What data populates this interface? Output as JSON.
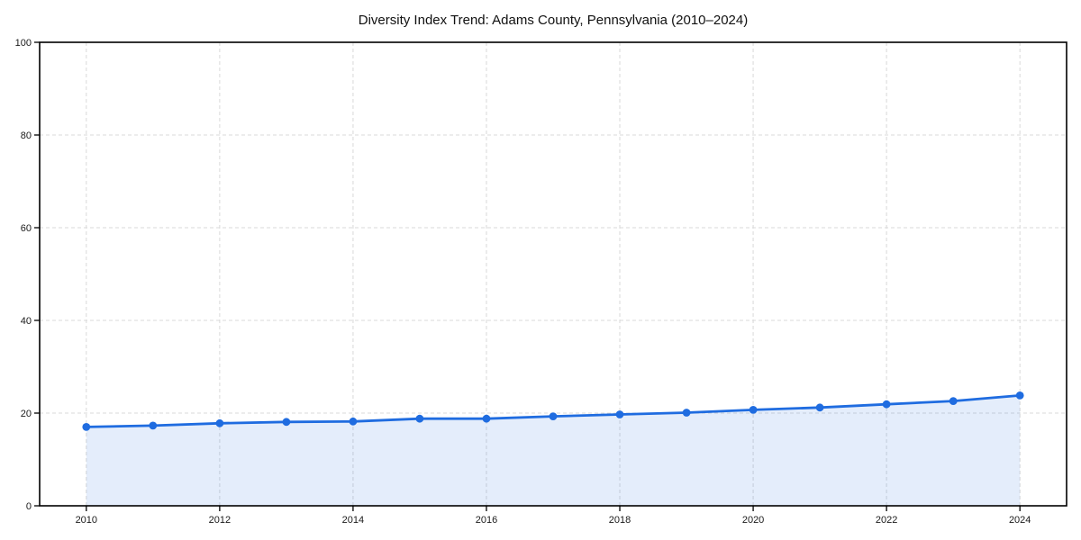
{
  "window": {
    "background": "#ffffff"
  },
  "chart_data": {
    "type": "line",
    "title": "Diversity Index Trend: Adams County, Pennsylvania (2010–2024)",
    "x": [
      2010,
      2011,
      2012,
      2013,
      2014,
      2015,
      2016,
      2017,
      2018,
      2019,
      2020,
      2021,
      2022,
      2023,
      2024
    ],
    "values": [
      17.0,
      17.3,
      17.8,
      18.1,
      18.2,
      18.8,
      18.8,
      19.3,
      19.7,
      20.1,
      20.7,
      21.2,
      21.9,
      22.6,
      23.8
    ],
    "xlabel": "",
    "ylabel": "",
    "xlim": [
      2009.3,
      2024.7
    ],
    "ylim": [
      0,
      100
    ],
    "xticks": [
      2010,
      2012,
      2014,
      2016,
      2018,
      2020,
      2022,
      2024
    ],
    "yticks": [
      0,
      20,
      40,
      60,
      80,
      100
    ],
    "grid": true,
    "grid_style": "dashed",
    "legend_position": "none",
    "marker": "circle",
    "area_fill": true,
    "colors": {
      "line": "#1f6ce0",
      "marker": "#1f6ce0",
      "area": "rgba(31, 108, 224, 0.12)",
      "grid": "#d9d9d9",
      "spine": "#000000",
      "tick": "#000000",
      "tick_label": "#1a1a1a",
      "title": "#111111"
    }
  }
}
